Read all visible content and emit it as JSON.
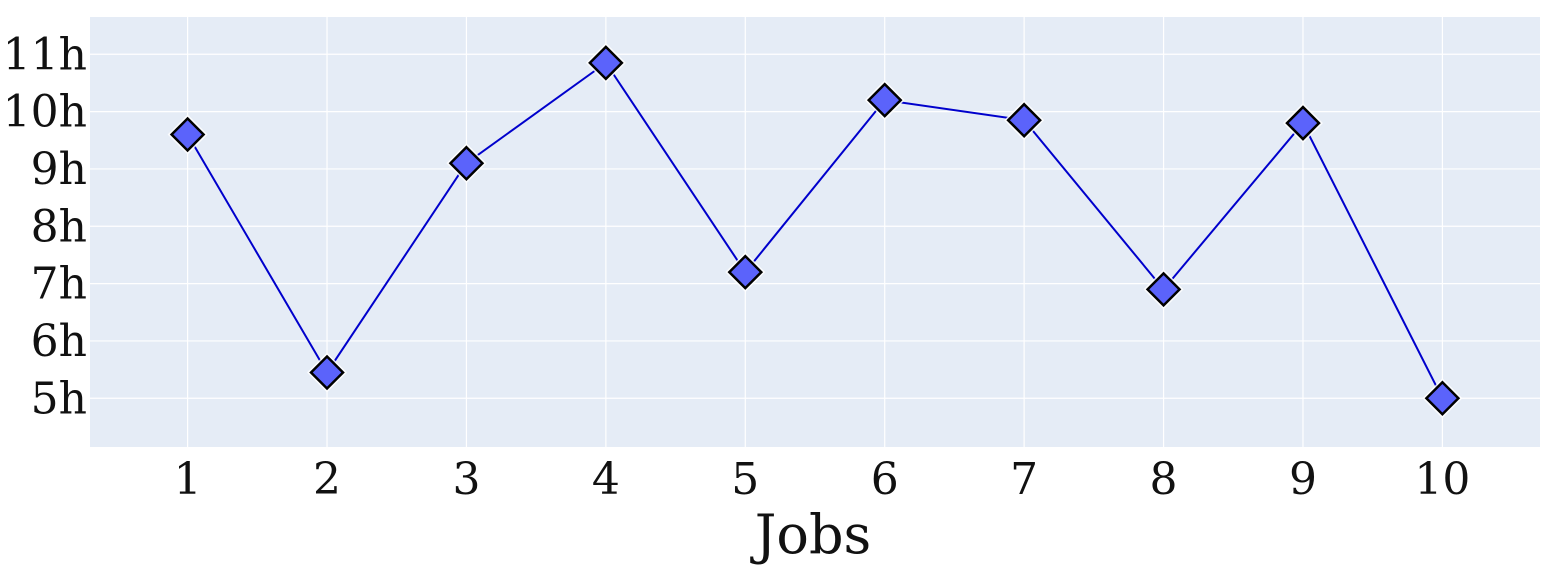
{
  "chart_data": {
    "type": "line",
    "title": "",
    "xlabel": "Jobs",
    "ylabel": "",
    "x": [
      1,
      2,
      3,
      4,
      5,
      6,
      7,
      8,
      9,
      10
    ],
    "x_tick_labels": [
      "1",
      "2",
      "3",
      "4",
      "5",
      "6",
      "7",
      "8",
      "9",
      "10"
    ],
    "series": [
      {
        "values": [
          9.6,
          5.45,
          9.1,
          10.85,
          7.2,
          10.2,
          9.85,
          6.9,
          9.8,
          5.0
        ]
      }
    ],
    "y_ticks": [
      5,
      6,
      7,
      8,
      9,
      10,
      11
    ],
    "y_tick_labels": [
      "5h",
      "6h",
      "7h",
      "8h",
      "9h",
      "10h",
      "11h"
    ],
    "xlim": [
      0.3,
      10.7
    ],
    "ylim": [
      4.15,
      11.65
    ],
    "grid": true,
    "colors": {
      "background": "#e5ecf6",
      "grid": "#ffffff",
      "line": "#0000cc",
      "marker_fill": "#5b63fb",
      "marker_edge": "#000000"
    }
  }
}
